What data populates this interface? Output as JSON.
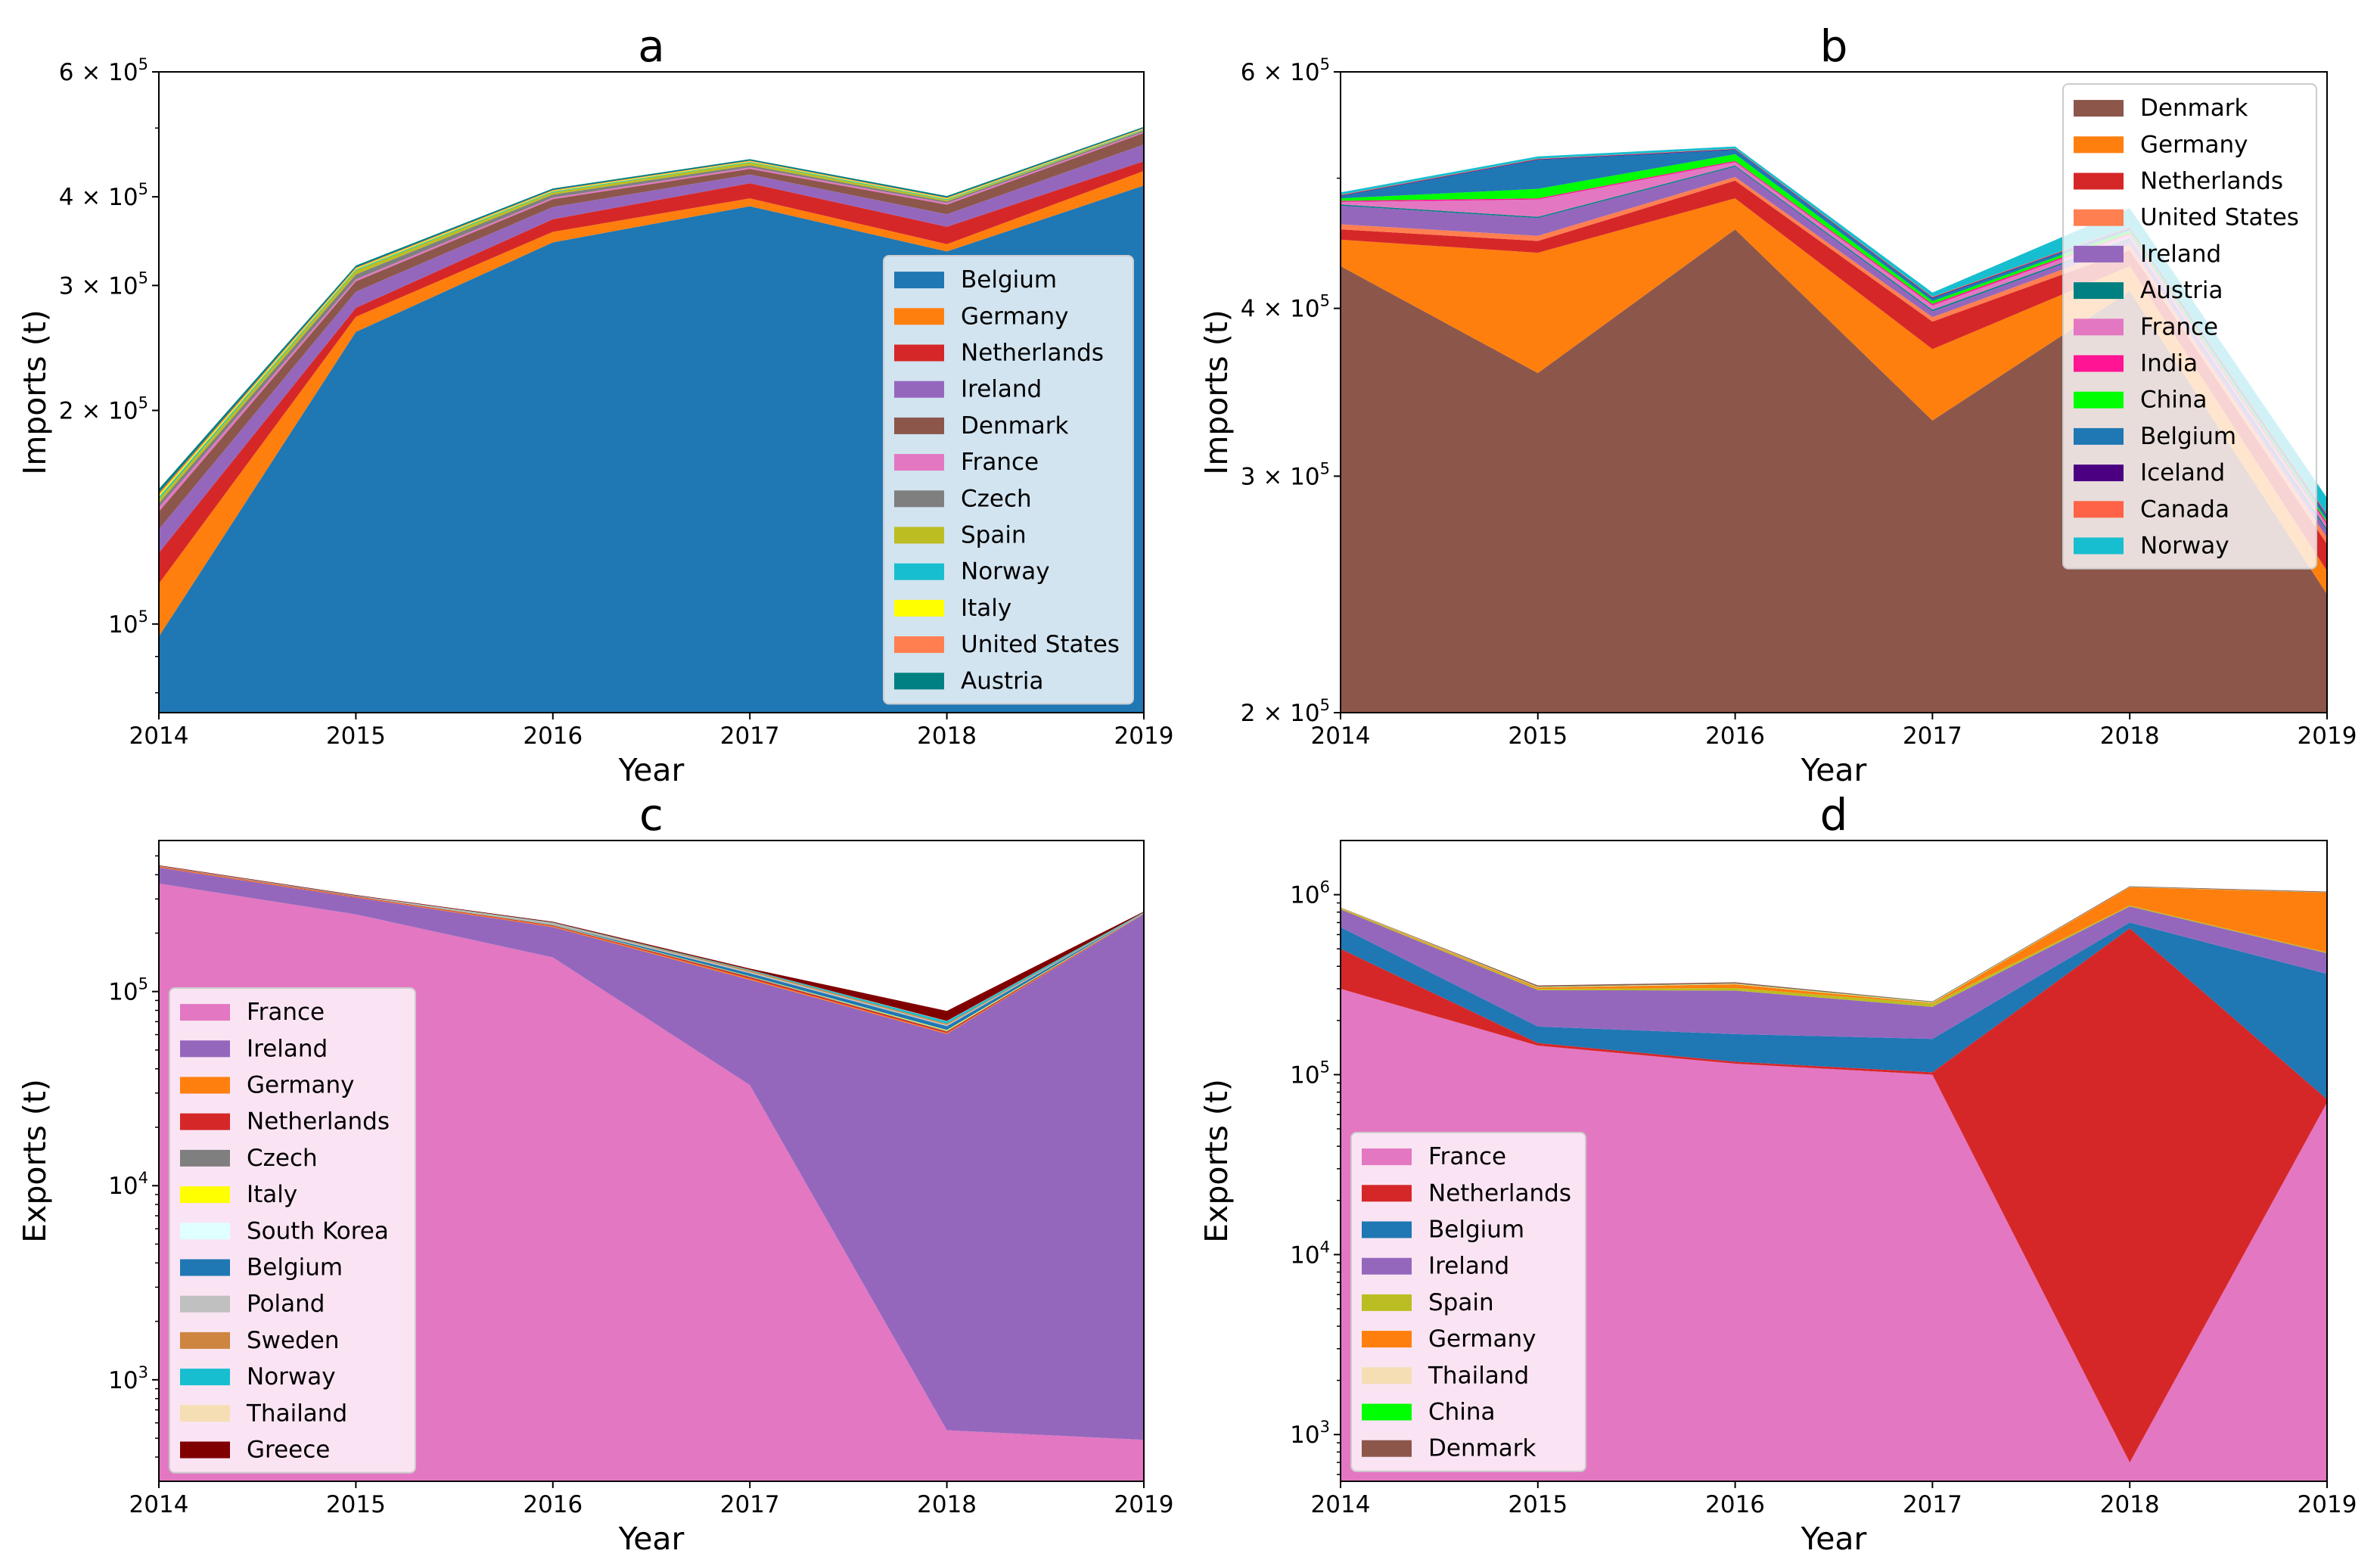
{
  "colors": {
    "France": "#e377c2",
    "Ireland": "#9467bd",
    "Germany": "#ff7f0e",
    "Netherlands": "#d62728",
    "Belgium": "#1f77b4",
    "Denmark": "#8c564b",
    "Czech": "#7f7f7f",
    "Spain": "#bcbd22",
    "Norway": "#17becf",
    "Italy": "#ffff00",
    "United States": "#ff7f50",
    "Austria": "#008080",
    "India": "#ff1493",
    "China": "#00ff00",
    "Iceland": "#4b0082",
    "Canada": "#ff6347",
    "South Korea": "#e0ffff",
    "Poland": "#c0c0c0",
    "Sweden": "#cd853f",
    "Thailand": "#f5deb3",
    "Greece": "#800000"
  },
  "chart_data": [
    {
      "panel": "a",
      "type": "area",
      "stacked": true,
      "title": "a",
      "xlabel": "Year",
      "ylabel": "Imports (t)",
      "yscale": "log",
      "ylim": [
        75000,
        600000
      ],
      "x": [
        2014,
        2015,
        2016,
        2017,
        2018,
        2019
      ],
      "xticks": [
        "2014",
        "2015",
        "2016",
        "2017",
        "2018",
        "2019"
      ],
      "yticks": [
        {
          "v": 100000,
          "m": "10",
          "e": "5"
        },
        {
          "v": 200000,
          "m": "2 × 10",
          "e": "5"
        },
        {
          "v": 300000,
          "m": "3 × 10",
          "e": "5"
        },
        {
          "v": 400000,
          "m": "4 × 10",
          "e": "5"
        },
        {
          "v": 600000,
          "m": "6 × 10",
          "e": "5"
        }
      ],
      "legend_loc": "lower-right",
      "series": [
        {
          "name": "Belgium",
          "values": [
            96000,
            258000,
            345000,
            388000,
            335000,
            415000
          ]
        },
        {
          "name": "Germany",
          "values": [
            18000,
            13000,
            12000,
            10000,
            8000,
            20000
          ]
        },
        {
          "name": "Netherlands",
          "values": [
            12000,
            8000,
            15000,
            20000,
            20000,
            14000
          ]
        },
        {
          "name": "Ireland",
          "values": [
            10000,
            15000,
            15000,
            12000,
            15000,
            25000
          ]
        },
        {
          "name": "Denmark",
          "values": [
            8000,
            10000,
            10000,
            8000,
            12000,
            18000
          ]
        },
        {
          "name": "France",
          "values": [
            2000,
            2000,
            2000,
            2000,
            2000,
            2000
          ]
        },
        {
          "name": "Czech",
          "values": [
            2000,
            5000,
            4000,
            3000,
            2000,
            2000
          ]
        },
        {
          "name": "Spain",
          "values": [
            2000,
            4000,
            3000,
            4000,
            2000,
            1000
          ]
        },
        {
          "name": "Norway",
          "values": [
            1000,
            1000,
            1000,
            1000,
            1000,
            1000
          ]
        },
        {
          "name": "Italy",
          "values": [
            1000,
            1000,
            1000,
            1000,
            1000,
            1000
          ]
        },
        {
          "name": "United States",
          "values": [
            1000,
            1000,
            1000,
            1000,
            1000,
            1000
          ]
        },
        {
          "name": "Austria",
          "values": [
            2000,
            2000,
            2000,
            2000,
            2000,
            2000
          ]
        }
      ],
      "legend": [
        "Belgium",
        "Germany",
        "Netherlands",
        "Ireland",
        "Denmark",
        "France",
        "Czech",
        "Spain",
        "Norway",
        "Italy",
        "United States",
        "Austria"
      ],
      "legend_alt": {
        "Spain": "#9edae5"
      }
    },
    {
      "panel": "b",
      "type": "area",
      "stacked": true,
      "title": "b",
      "xlabel": "Year",
      "ylabel": "Imports (t)",
      "yscale": "log",
      "ylim": [
        200000,
        600000
      ],
      "x": [
        2014,
        2015,
        2016,
        2017,
        2018,
        2019
      ],
      "xticks": [
        "2014",
        "2015",
        "2016",
        "2017",
        "2018",
        "2019"
      ],
      "yticks": [
        {
          "v": 200000,
          "m": "2 × 10",
          "e": "5"
        },
        {
          "v": 300000,
          "m": "3 × 10",
          "e": "5"
        },
        {
          "v": 400000,
          "m": "4 × 10",
          "e": "5"
        },
        {
          "v": 600000,
          "m": "6 × 10",
          "e": "5"
        }
      ],
      "legend_loc": "upper-right",
      "series": [
        {
          "name": "Denmark",
          "values": [
            430000,
            358000,
            458000,
            330000,
            412000,
            245000
          ]
        },
        {
          "name": "Germany",
          "values": [
            20000,
            82000,
            25000,
            43000,
            18000,
            10000
          ]
        },
        {
          "name": "Netherlands",
          "values": [
            8000,
            9000,
            15000,
            18000,
            12000,
            12000
          ]
        },
        {
          "name": "United States",
          "values": [
            4000,
            4000,
            3000,
            3000,
            4000,
            3000
          ]
        },
        {
          "name": "Ireland",
          "values": [
            15000,
            14000,
            9000,
            4000,
            4000,
            3000
          ]
        },
        {
          "name": "Austria",
          "values": [
            1000,
            1000,
            1000,
            1000,
            1000,
            1000
          ]
        },
        {
          "name": "France",
          "values": [
            2000,
            14000,
            3000,
            3000,
            3000,
            2000
          ]
        },
        {
          "name": "India",
          "values": [
            1000,
            1000,
            1000,
            1000,
            1000,
            1000
          ]
        },
        {
          "name": "China",
          "values": [
            2000,
            8000,
            6000,
            2000,
            2000,
            1000
          ]
        },
        {
          "name": "Belgium",
          "values": [
            2000,
            25000,
            4000,
            2000,
            2000,
            2000
          ]
        },
        {
          "name": "Iceland",
          "values": [
            500,
            500,
            500,
            500,
            500,
            500
          ]
        },
        {
          "name": "Canada",
          "values": [
            500,
            500,
            500,
            500,
            500,
            500
          ]
        },
        {
          "name": "Norway",
          "values": [
            2000,
            2000,
            2000,
            3000,
            15000,
            8000
          ]
        }
      ],
      "legend": [
        "Denmark",
        "Germany",
        "Netherlands",
        "United States",
        "Ireland",
        "Austria",
        "France",
        "India",
        "China",
        "Belgium",
        "Iceland",
        "Canada",
        "Norway"
      ]
    },
    {
      "panel": "c",
      "type": "area",
      "stacked": true,
      "title": "c",
      "xlabel": "Year",
      "ylabel": "Exports (t)",
      "yscale": "log",
      "ylim": [
        300,
        600000
      ],
      "x": [
        2014,
        2015,
        2016,
        2017,
        2018,
        2019
      ],
      "xticks": [
        "2014",
        "2015",
        "2016",
        "2017",
        "2018",
        "2019"
      ],
      "yticks": [
        {
          "v": 1000,
          "m": "10",
          "e": "3"
        },
        {
          "v": 10000,
          "m": "10",
          "e": "4"
        },
        {
          "v": 100000,
          "m": "10",
          "e": "5"
        }
      ],
      "legend_loc": "lower-left",
      "series": [
        {
          "name": "France",
          "values": [
            360000,
            250000,
            150000,
            33000,
            550,
            490
          ]
        },
        {
          "name": "Ireland",
          "values": [
            75000,
            55000,
            65000,
            82000,
            60000,
            250000
          ]
        },
        {
          "name": "Germany",
          "values": [
            3000,
            2000,
            2000,
            1500,
            600,
            500
          ]
        },
        {
          "name": "Netherlands",
          "values": [
            3000,
            2000,
            2000,
            2000,
            1000,
            1000
          ]
        },
        {
          "name": "Czech",
          "values": [
            500,
            500,
            1000,
            1000,
            500,
            500
          ]
        },
        {
          "name": "Italy",
          "values": [
            500,
            500,
            500,
            500,
            500,
            500
          ]
        },
        {
          "name": "South Korea",
          "values": [
            200,
            200,
            200,
            200,
            200,
            200
          ]
        },
        {
          "name": "Belgium",
          "values": [
            500,
            500,
            1000,
            4000,
            3000,
            1000
          ]
        },
        {
          "name": "Poland",
          "values": [
            500,
            500,
            3000,
            2000,
            1000,
            500
          ]
        },
        {
          "name": "Sweden",
          "values": [
            500,
            500,
            1000,
            2000,
            1000,
            500
          ]
        },
        {
          "name": "Norway",
          "values": [
            500,
            500,
            1000,
            1000,
            2000,
            1000
          ]
        },
        {
          "name": "Thailand",
          "values": [
            200,
            200,
            200,
            200,
            200,
            200
          ]
        },
        {
          "name": "Greece",
          "values": [
            3000,
            2000,
            2000,
            2000,
            9000,
            2000
          ]
        }
      ],
      "legend": [
        "France",
        "Ireland",
        "Germany",
        "Netherlands",
        "Czech",
        "Italy",
        "South Korea",
        "Belgium",
        "Poland",
        "Sweden",
        "Norway",
        "Thailand",
        "Greece"
      ]
    },
    {
      "panel": "d",
      "type": "area",
      "stacked": true,
      "title": "d",
      "xlabel": "Year",
      "ylabel": "Exports (t)",
      "yscale": "log",
      "ylim": [
        550,
        2000000
      ],
      "x": [
        2014,
        2015,
        2016,
        2017,
        2018,
        2019
      ],
      "xticks": [
        "2014",
        "2015",
        "2016",
        "2017",
        "2018",
        "2019"
      ],
      "yticks": [
        {
          "v": 1000,
          "m": "10",
          "e": "3"
        },
        {
          "v": 10000,
          "m": "10",
          "e": "4"
        },
        {
          "v": 100000,
          "m": "10",
          "e": "5"
        },
        {
          "v": 1000000,
          "m": "10",
          "e": "6"
        }
      ],
      "legend_loc": "lower-left",
      "series": [
        {
          "name": "France",
          "values": [
            300000,
            145000,
            115000,
            100000,
            700,
            70000
          ]
        },
        {
          "name": "Netherlands",
          "values": [
            200000,
            5000,
            3000,
            3000,
            650000,
            3000
          ]
        },
        {
          "name": "Belgium",
          "values": [
            160000,
            35000,
            50000,
            55000,
            50000,
            290000
          ]
        },
        {
          "name": "Ireland",
          "values": [
            170000,
            110000,
            125000,
            80000,
            160000,
            110000
          ]
        },
        {
          "name": "Spain",
          "values": [
            10000,
            5000,
            10000,
            10000,
            10000,
            5000
          ]
        },
        {
          "name": "Germany",
          "values": [
            5000,
            5000,
            15000,
            2000,
            230000,
            550000
          ]
        },
        {
          "name": "Thailand",
          "values": [
            2000,
            2000,
            2000,
            2000,
            2000,
            2000
          ]
        },
        {
          "name": "China",
          "values": [
            1000,
            1000,
            1000,
            1000,
            1000,
            1000
          ]
        },
        {
          "name": "Denmark",
          "values": [
            2000,
            5000,
            5000,
            2000,
            10000,
            10000
          ]
        }
      ],
      "legend": [
        "France",
        "Netherlands",
        "Belgium",
        "Ireland",
        "Spain",
        "Germany",
        "Thailand",
        "China",
        "Denmark"
      ]
    }
  ]
}
